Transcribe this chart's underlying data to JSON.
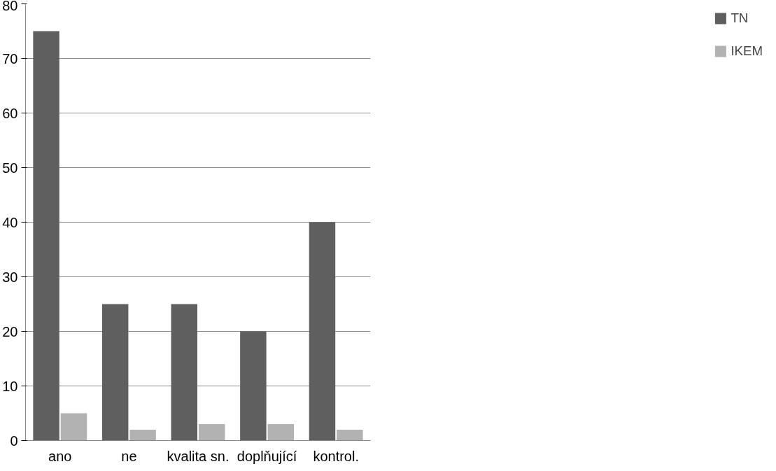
{
  "chart_data": {
    "type": "bar",
    "categories": [
      "ano",
      "ne",
      "kvalita sn.",
      "doplňující",
      "kontrol."
    ],
    "series": [
      {
        "name": "TN",
        "color": "#5f5f5f",
        "values": [
          75,
          25,
          25,
          20,
          40
        ]
      },
      {
        "name": "IKEM",
        "color": "#b2b2b2",
        "values": [
          5,
          2,
          3,
          3,
          2
        ]
      }
    ],
    "ylim": [
      0,
      80
    ],
    "yticks": [
      0,
      10,
      20,
      30,
      40,
      50,
      60,
      70,
      80
    ],
    "grid": "y",
    "legend": "right"
  }
}
